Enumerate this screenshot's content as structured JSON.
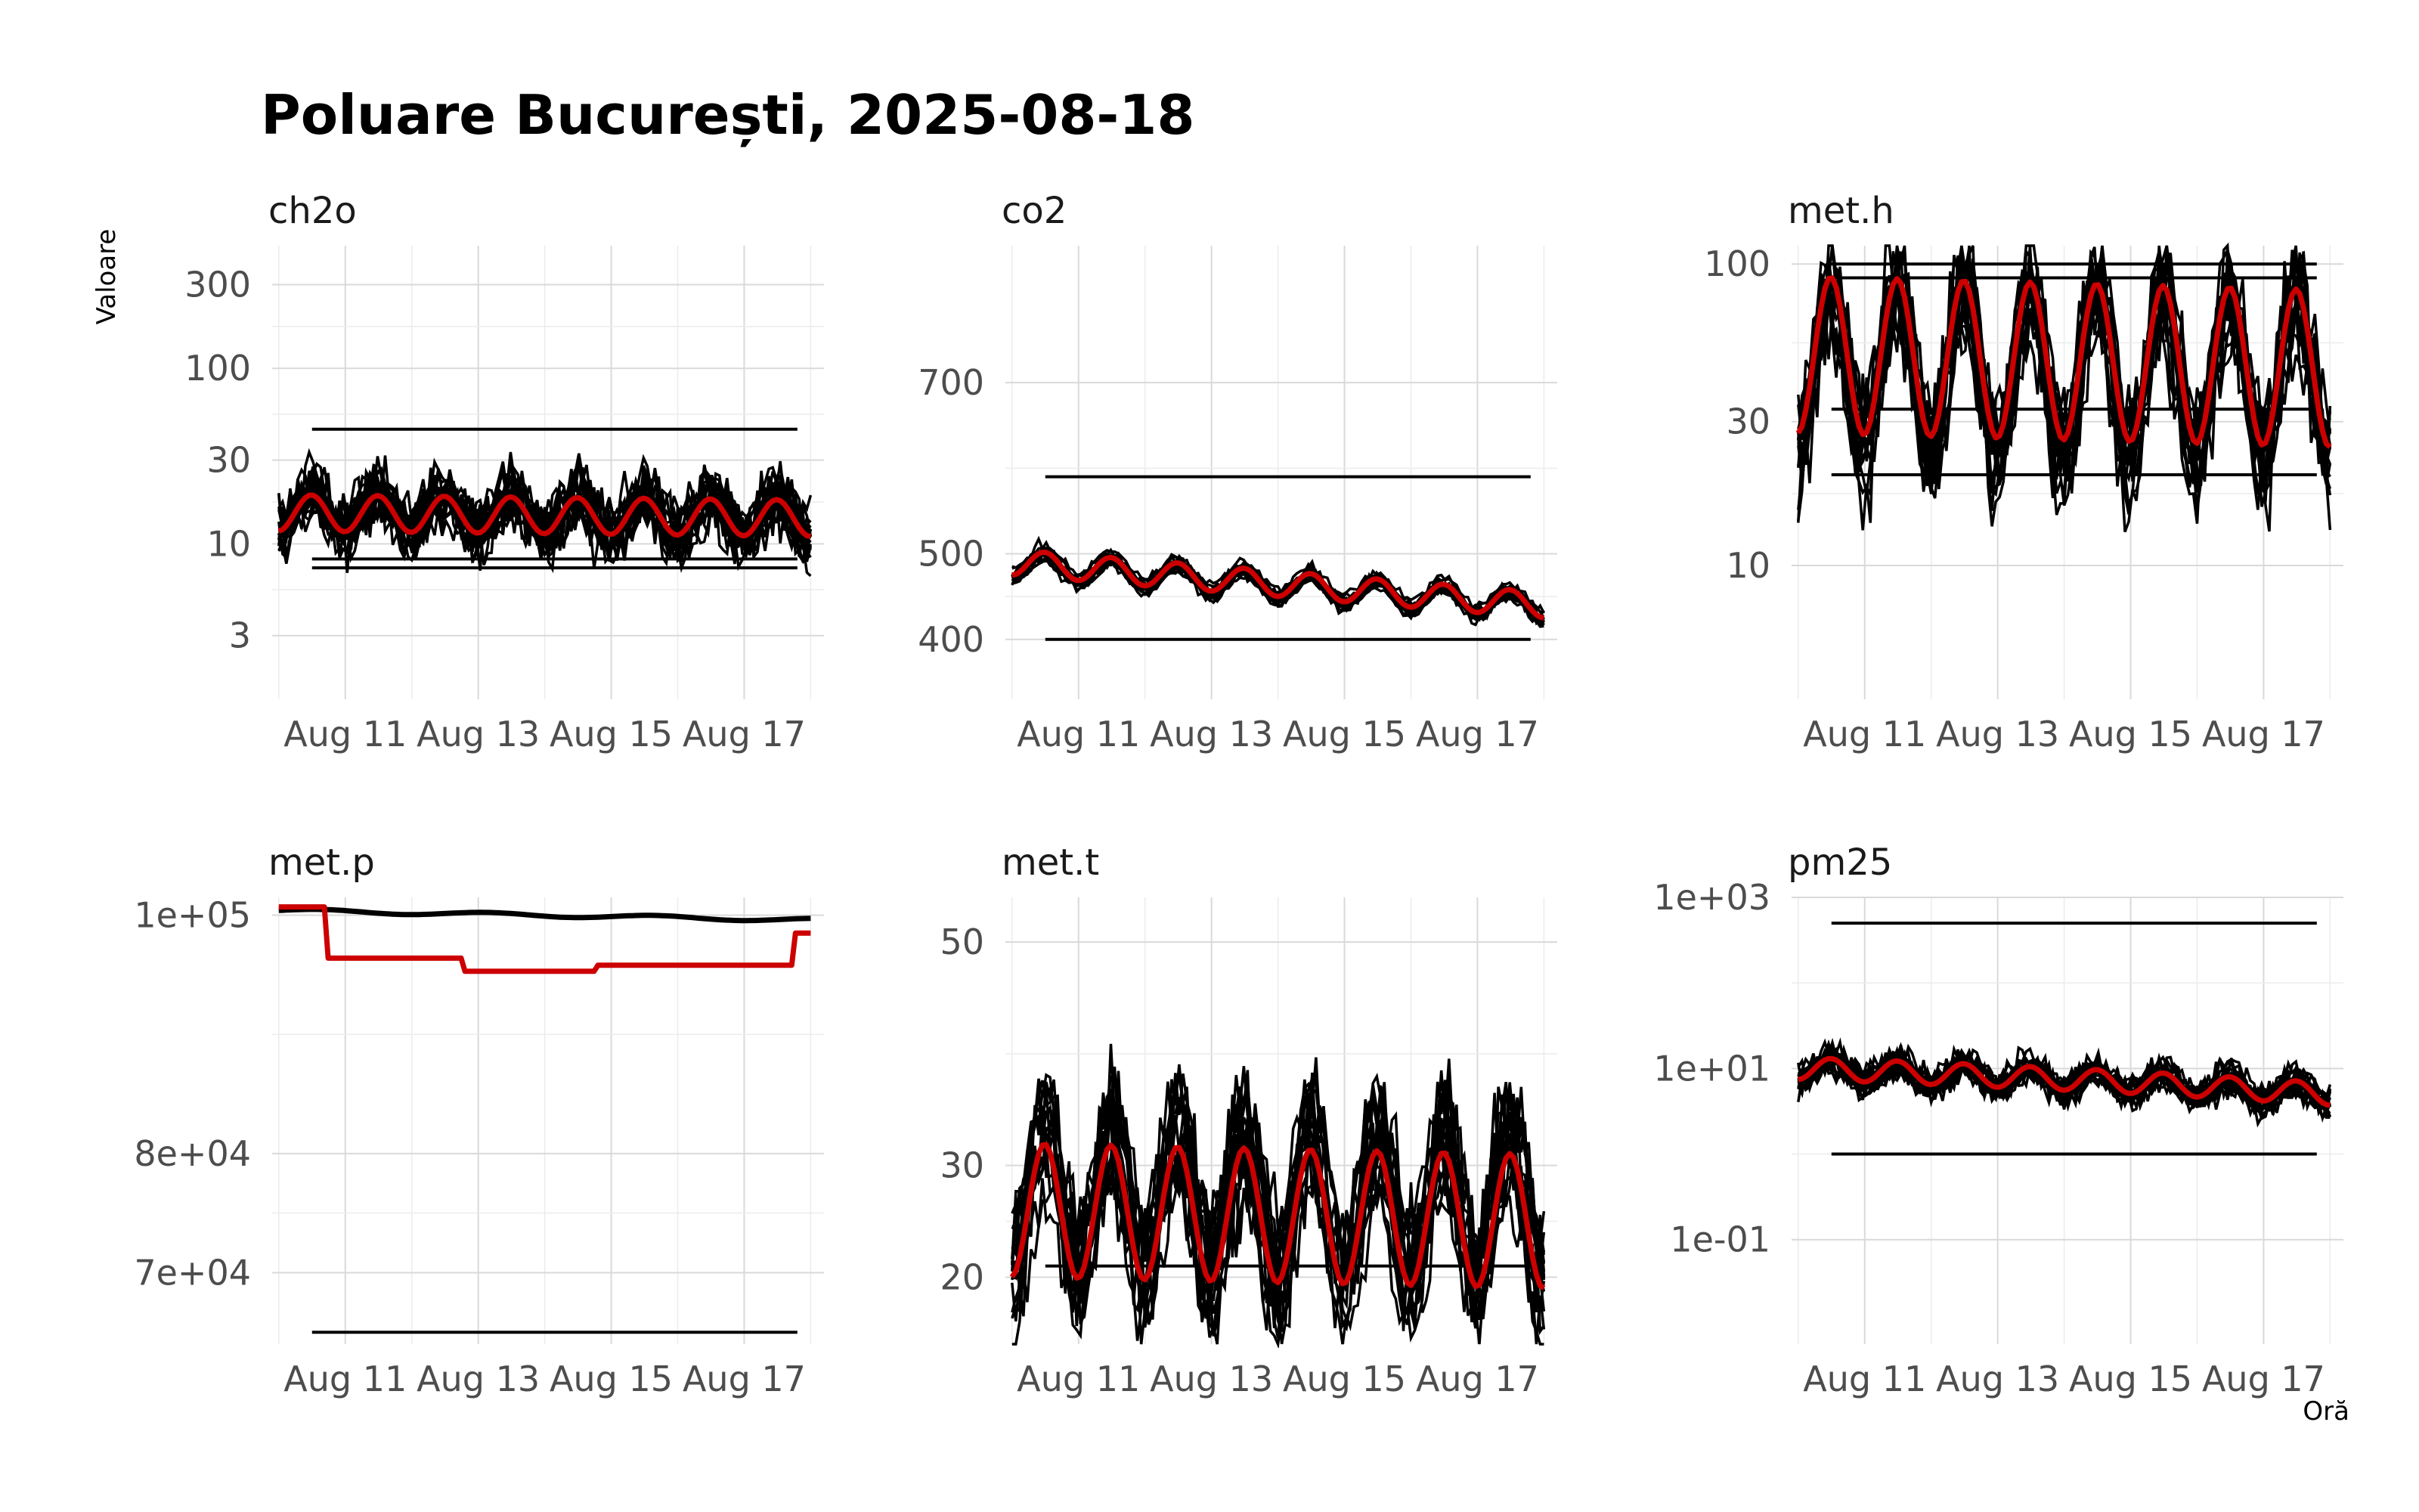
{
  "chart_data": {
    "type": "line",
    "title": "Poluare București, 2025-08-18",
    "xlabel": "Oră",
    "ylabel": "Valoare",
    "x_ticks": [
      "Aug 11",
      "Aug 13",
      "Aug 15",
      "Aug 17"
    ],
    "x_range": [
      "2025-08-10",
      "2025-08-18"
    ],
    "grid": true,
    "series_colors": {
      "stations": "#000000",
      "mean": "#cc0000"
    },
    "panels": [
      {
        "name": "ch2o",
        "y_scale": "log",
        "y_ticks": [
          "3",
          "10",
          "30",
          "100",
          "300"
        ],
        "y_tick_values": [
          3,
          10,
          30,
          100,
          300
        ],
        "y_range": [
          1.3,
          500
        ],
        "mean_start": 15,
        "mean_end": 14,
        "mean_daily_amp": 0.08,
        "flat_lines": [
          8.2,
          7.3,
          45
        ]
      },
      {
        "name": "co2",
        "y_scale": "linear",
        "y_ticks": [
          "400",
          "500",
          "700"
        ],
        "y_tick_values": [
          400,
          500,
          700
        ],
        "y_range": [
          330,
          860
        ],
        "mean_start": 490,
        "mean_end": 440,
        "mean_daily_amp": 15,
        "flat_lines": [
          400,
          590
        ]
      },
      {
        "name": "met.h",
        "y_scale": "log",
        "y_ticks": [
          "10",
          "30",
          "100"
        ],
        "y_tick_values": [
          10,
          30,
          100
        ],
        "y_range": [
          3.6,
          115
        ],
        "mean_start": 50,
        "mean_end": 45,
        "mean_daily_amp": 0.2,
        "flat_lines": [
          100,
          90,
          20,
          33
        ]
      },
      {
        "name": "met.p",
        "y_scale": "linear",
        "y_ticks": [
          "7e+04",
          "8e+04",
          "1e+05"
        ],
        "y_tick_values": [
          70000,
          80000,
          100000
        ],
        "y_range": [
          64000,
          101500
        ],
        "mean_start": 100500,
        "mean_end": 96000,
        "mean_daily_amp": 0,
        "flat_lines": [
          65000
        ]
      },
      {
        "name": "met.t",
        "y_scale": "linear",
        "y_ticks": [
          "20",
          "30",
          "50"
        ],
        "y_tick_values": [
          20,
          30,
          50
        ],
        "y_range": [
          14,
          54
        ],
        "mean_start": 26,
        "mean_end": 25,
        "mean_daily_amp": 6,
        "flat_lines": [
          21
        ]
      },
      {
        "name": "pm25",
        "y_scale": "log",
        "y_ticks": [
          "1e-01",
          "1e+01",
          "1e+03"
        ],
        "y_tick_values": [
          0.1,
          10,
          1000
        ],
        "y_range": [
          0.006,
          1000
        ],
        "mean_start": 10,
        "mean_end": 5,
        "mean_daily_amp": 0.1,
        "flat_lines": [
          500,
          1
        ]
      }
    ]
  }
}
